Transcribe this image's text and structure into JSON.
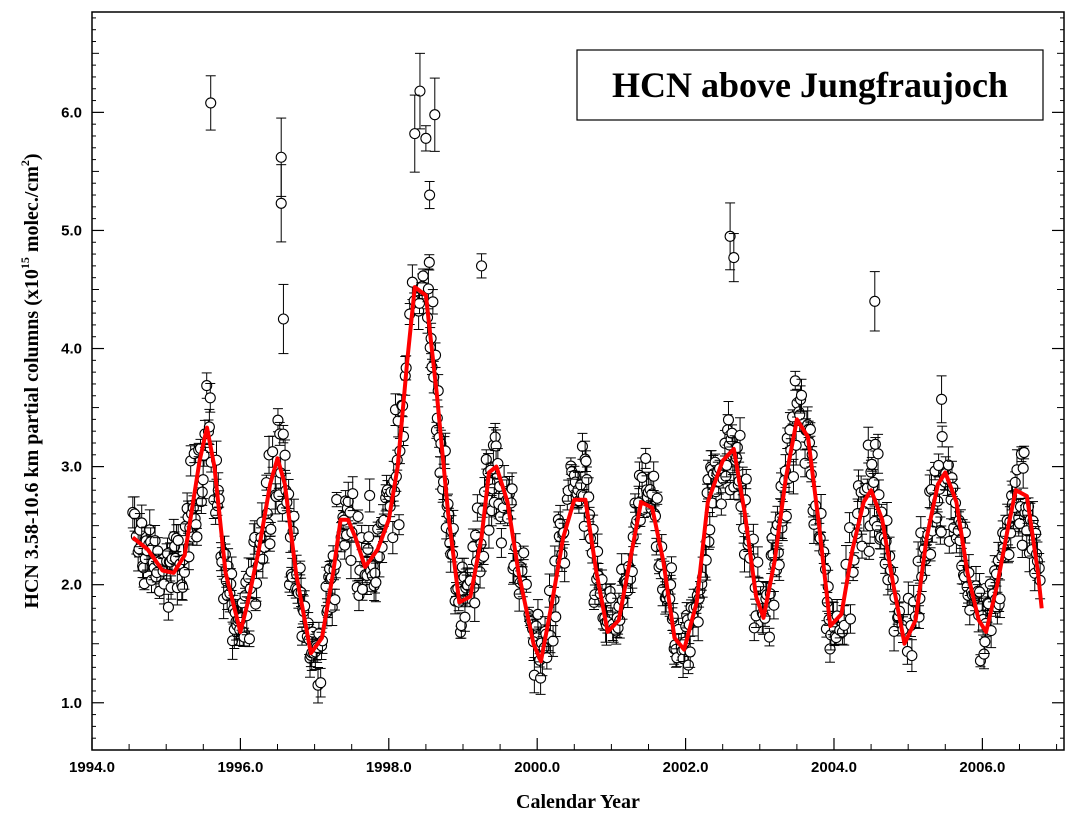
{
  "chart_data": {
    "type": "scatter",
    "title": "HCN above Jungfraujoch",
    "xlabel": "Calendar Year",
    "ylabel_main": "HCN 3.58-10.6 km partial columns (x10",
    "ylabel_exp": "15",
    "ylabel_mid": " molec./cm",
    "ylabel_exp2": "2",
    "ylabel_end": ")",
    "xlim": [
      1994.0,
      2007.1
    ],
    "ylim": [
      0.6,
      6.85
    ],
    "x_ticks": [
      1994.0,
      1996.0,
      1998.0,
      2000.0,
      2002.0,
      2004.0,
      2006.0
    ],
    "x_tick_labels": [
      "1994.0",
      "1996.0",
      "1998.0",
      "2000.0",
      "2002.0",
      "2004.0",
      "2006.0"
    ],
    "y_ticks": [
      1.0,
      2.0,
      3.0,
      4.0,
      5.0,
      6.0
    ],
    "y_tick_labels": [
      "1.0",
      "2.0",
      "3.0",
      "4.0",
      "5.0",
      "6.0"
    ],
    "grid": false,
    "legend": "none",
    "colors": {
      "fit": "#ff0000",
      "points": "#000000",
      "background": "#ffffff"
    },
    "series": [
      {
        "kind": "fit-line",
        "points": [
          [
            1994.55,
            2.4
          ],
          [
            1994.75,
            2.3
          ],
          [
            1994.95,
            2.12
          ],
          [
            1995.1,
            2.1
          ],
          [
            1995.25,
            2.25
          ],
          [
            1995.35,
            2.65
          ],
          [
            1995.45,
            3.05
          ],
          [
            1995.55,
            3.33
          ],
          [
            1995.65,
            3.0
          ],
          [
            1995.8,
            2.1
          ],
          [
            1996.0,
            1.6
          ],
          [
            1996.1,
            1.85
          ],
          [
            1996.25,
            2.3
          ],
          [
            1996.4,
            2.85
          ],
          [
            1996.5,
            3.07
          ],
          [
            1996.6,
            2.85
          ],
          [
            1996.75,
            2.1
          ],
          [
            1996.95,
            1.42
          ],
          [
            1997.1,
            1.55
          ],
          [
            1997.25,
            2.1
          ],
          [
            1997.35,
            2.55
          ],
          [
            1997.45,
            2.55
          ],
          [
            1997.55,
            2.4
          ],
          [
            1997.68,
            2.15
          ],
          [
            1997.85,
            2.3
          ],
          [
            1998.0,
            2.55
          ],
          [
            1998.12,
            3.0
          ],
          [
            1998.25,
            3.9
          ],
          [
            1998.35,
            4.52
          ],
          [
            1998.5,
            4.45
          ],
          [
            1998.65,
            3.6
          ],
          [
            1998.8,
            2.6
          ],
          [
            1998.95,
            1.85
          ],
          [
            1999.1,
            1.9
          ],
          [
            1999.25,
            2.4
          ],
          [
            1999.35,
            2.95
          ],
          [
            1999.45,
            3.0
          ],
          [
            1999.6,
            2.7
          ],
          [
            1999.75,
            2.1
          ],
          [
            1999.95,
            1.5
          ],
          [
            2000.05,
            1.35
          ],
          [
            2000.2,
            1.85
          ],
          [
            2000.35,
            2.4
          ],
          [
            2000.5,
            2.72
          ],
          [
            2000.65,
            2.72
          ],
          [
            2000.8,
            2.1
          ],
          [
            2000.95,
            1.6
          ],
          [
            2001.1,
            1.7
          ],
          [
            2001.25,
            2.2
          ],
          [
            2001.4,
            2.7
          ],
          [
            2001.55,
            2.65
          ],
          [
            2001.7,
            2.2
          ],
          [
            2001.85,
            1.55
          ],
          [
            2001.98,
            1.45
          ],
          [
            2002.15,
            1.85
          ],
          [
            2002.3,
            2.7
          ],
          [
            2002.5,
            3.05
          ],
          [
            2002.65,
            3.15
          ],
          [
            2002.8,
            2.6
          ],
          [
            2002.95,
            1.9
          ],
          [
            2003.05,
            1.72
          ],
          [
            2003.2,
            2.2
          ],
          [
            2003.35,
            2.9
          ],
          [
            2003.5,
            3.4
          ],
          [
            2003.65,
            3.25
          ],
          [
            2003.8,
            2.5
          ],
          [
            2003.95,
            1.65
          ],
          [
            2004.1,
            1.75
          ],
          [
            2004.25,
            2.3
          ],
          [
            2004.4,
            2.7
          ],
          [
            2004.5,
            2.8
          ],
          [
            2004.65,
            2.55
          ],
          [
            2004.8,
            2.0
          ],
          [
            2004.95,
            1.5
          ],
          [
            2005.1,
            1.7
          ],
          [
            2005.25,
            2.4
          ],
          [
            2005.4,
            2.85
          ],
          [
            2005.5,
            2.95
          ],
          [
            2005.65,
            2.7
          ],
          [
            2005.8,
            2.1
          ],
          [
            2005.95,
            1.7
          ],
          [
            2006.05,
            1.6
          ],
          [
            2006.2,
            2.0
          ],
          [
            2006.35,
            2.5
          ],
          [
            2006.45,
            2.8
          ],
          [
            2006.6,
            2.75
          ],
          [
            2006.75,
            2.1
          ],
          [
            2006.8,
            1.8
          ]
        ]
      },
      {
        "kind": "outliers",
        "points": [
          [
            1995.6,
            6.08
          ],
          [
            1996.55,
            5.62
          ],
          [
            1996.55,
            5.23
          ],
          [
            1996.58,
            4.25
          ],
          [
            1998.42,
            6.18
          ],
          [
            1998.62,
            5.98
          ],
          [
            1999.25,
            4.7
          ],
          [
            2002.6,
            4.95
          ],
          [
            2002.65,
            4.77
          ],
          [
            2004.55,
            4.4
          ],
          [
            2005.45,
            3.57
          ],
          [
            1998.35,
            5.82
          ],
          [
            1998.55,
            5.3
          ],
          [
            1998.5,
            5.78
          ]
        ]
      }
    ]
  }
}
